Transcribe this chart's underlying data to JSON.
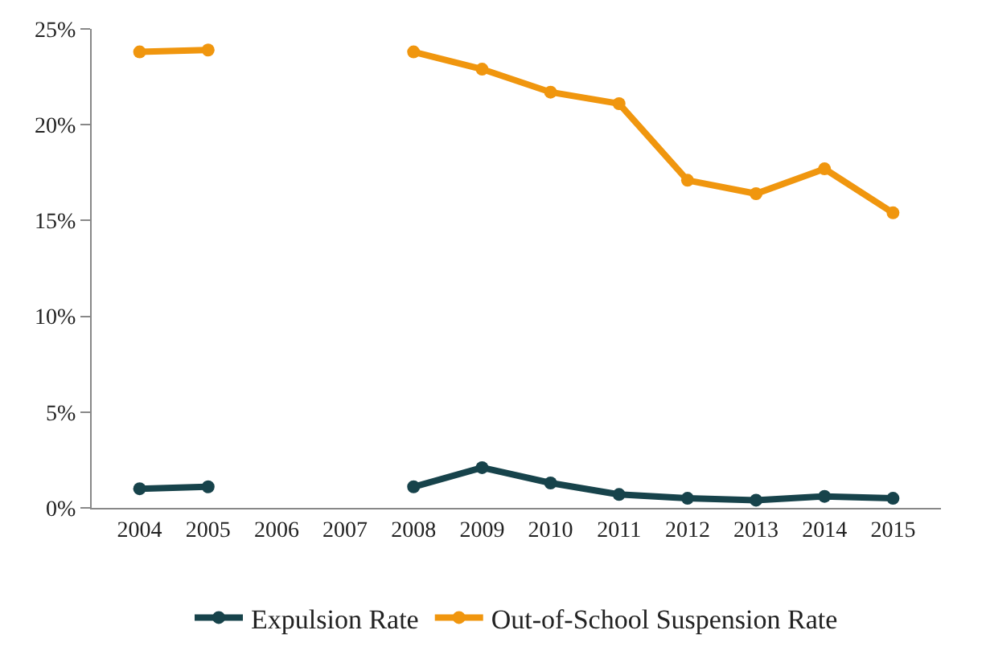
{
  "chart_data": {
    "type": "line",
    "categories": [
      "2004",
      "2005",
      "2006",
      "2007",
      "2008",
      "2009",
      "2010",
      "2011",
      "2012",
      "2013",
      "2014",
      "2015"
    ],
    "series": [
      {
        "name": "Expulsion Rate",
        "color": "#17434b",
        "values": [
          1.0,
          1.1,
          null,
          null,
          1.1,
          2.1,
          1.3,
          0.7,
          0.5,
          0.4,
          0.6,
          0.5
        ]
      },
      {
        "name": "Out-of-School Suspension Rate",
        "color": "#f0960e",
        "values": [
          23.8,
          23.9,
          null,
          null,
          23.8,
          22.9,
          21.7,
          21.1,
          17.1,
          16.4,
          17.7,
          15.4
        ]
      }
    ],
    "ylim": [
      0,
      25
    ],
    "yticks": [
      {
        "value": 0,
        "label": "0%"
      },
      {
        "value": 5,
        "label": "5%"
      },
      {
        "value": 10,
        "label": "10%"
      },
      {
        "value": 15,
        "label": "15%"
      },
      {
        "value": 20,
        "label": "20%"
      },
      {
        "value": 25,
        "label": "25%"
      }
    ],
    "grid": false,
    "legend": "bottom",
    "marker": "circle",
    "line_style": "solid"
  }
}
